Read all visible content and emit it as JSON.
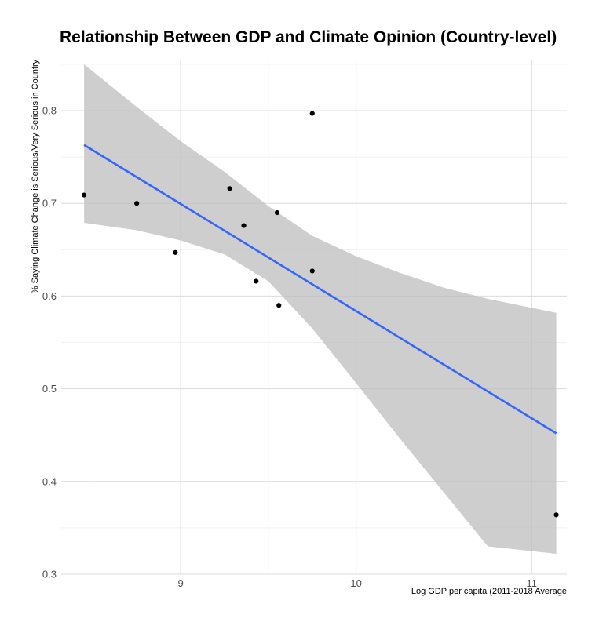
{
  "chart_data": {
    "type": "scatter",
    "title": "Relationship Between GDP and Climate Opinion (Country-level)",
    "xlabel": "Log GDP per capita (2011-2018 Average",
    "ylabel": "% Saying Climate Change is Serious/Very Serious in Country",
    "xlim": [
      8.32,
      11.2
    ],
    "ylim": [
      0.3,
      0.855
    ],
    "x_ticks": [
      9,
      10,
      11
    ],
    "x_tick_labels": [
      "9",
      "10",
      "11"
    ],
    "y_ticks": [
      0.3,
      0.4,
      0.5,
      0.6,
      0.7,
      0.8
    ],
    "y_tick_labels": [
      "0.3",
      "0.4",
      "0.5",
      "0.6",
      "0.7",
      "0.8"
    ],
    "grid": true,
    "points": [
      {
        "x": 8.45,
        "y": 0.709
      },
      {
        "x": 8.75,
        "y": 0.7
      },
      {
        "x": 8.97,
        "y": 0.647
      },
      {
        "x": 9.28,
        "y": 0.716
      },
      {
        "x": 9.36,
        "y": 0.676
      },
      {
        "x": 9.43,
        "y": 0.616
      },
      {
        "x": 9.55,
        "y": 0.69
      },
      {
        "x": 9.56,
        "y": 0.59
      },
      {
        "x": 9.75,
        "y": 0.797
      },
      {
        "x": 9.75,
        "y": 0.627
      },
      {
        "x": 11.14,
        "y": 0.364
      }
    ],
    "fit_line": {
      "x": [
        8.45,
        11.14
      ],
      "y": [
        0.763,
        0.452
      ],
      "color": "#3366ff"
    },
    "confidence_band": {
      "color": "#bebebe",
      "x": [
        8.45,
        8.75,
        9.0,
        9.25,
        9.5,
        9.75,
        10.0,
        10.25,
        10.5,
        10.75,
        11.14
      ],
      "upper": [
        0.85,
        0.804,
        0.767,
        0.734,
        0.697,
        0.665,
        0.643,
        0.625,
        0.609,
        0.597,
        0.582
      ],
      "lower": [
        0.679,
        0.671,
        0.66,
        0.645,
        0.616,
        0.565,
        0.506,
        0.446,
        0.388,
        0.33,
        0.322
      ]
    },
    "point_color": "#000000"
  }
}
